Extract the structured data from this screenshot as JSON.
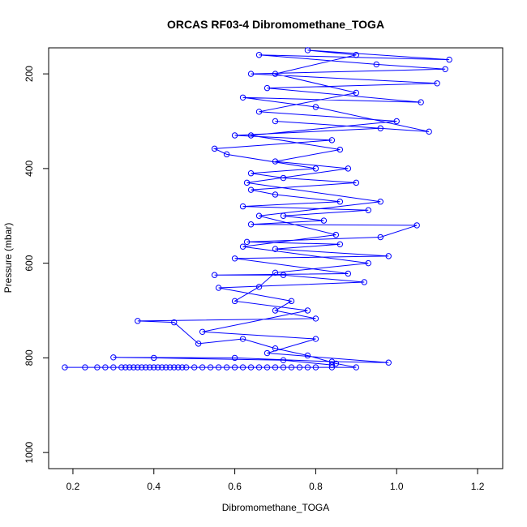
{
  "chart_data": {
    "type": "line",
    "title": "ORCAS RF03-4 Dibromomethane_TOGA",
    "x_label": "Dibromomethane_TOGA",
    "y_label": "Pressure (mbar)",
    "color": "#0000ff",
    "x": [
      0.18,
      0.23,
      0.26,
      0.28,
      0.3,
      0.32,
      0.33,
      0.34,
      0.35,
      0.36,
      0.37,
      0.38,
      0.39,
      0.4,
      0.41,
      0.42,
      0.43,
      0.44,
      0.45,
      0.46,
      0.47,
      0.48,
      0.5,
      0.52,
      0.54,
      0.56,
      0.58,
      0.6,
      0.62,
      0.64,
      0.66,
      0.68,
      0.7,
      0.72,
      0.74,
      0.76,
      0.78,
      0.8,
      0.84,
      0.9,
      0.85,
      0.78,
      0.7,
      0.62,
      0.51,
      0.45,
      0.36,
      0.8,
      0.7,
      0.74,
      0.56,
      0.92,
      0.72,
      0.55,
      0.88,
      0.6,
      0.98,
      0.7,
      0.86,
      0.63,
      0.96,
      1.05,
      0.64,
      0.82,
      0.72,
      0.93,
      0.62,
      0.86,
      0.7,
      0.64,
      0.9,
      0.72,
      0.64,
      0.8,
      0.58,
      0.55,
      0.84,
      0.6,
      0.96,
      0.7,
      1.08,
      0.8,
      0.62,
      1.06,
      0.68,
      1.1,
      0.64,
      1.12,
      0.95,
      0.66,
      1.13,
      0.78,
      0.9,
      0.7,
      0.9,
      0.66,
      1.0,
      0.64,
      0.86,
      0.7,
      0.88,
      0.63,
      0.96,
      0.66,
      0.85,
      0.62,
      0.93,
      0.7,
      0.66,
      0.6,
      0.78,
      0.52,
      0.8,
      0.68,
      0.98,
      0.84,
      0.6,
      0.3,
      0.4,
      0.72,
      0.84
    ],
    "values": [
      820,
      820,
      820,
      820,
      820,
      820,
      820,
      820,
      820,
      820,
      820,
      820,
      820,
      820,
      820,
      820,
      820,
      820,
      820,
      820,
      820,
      820,
      820,
      820,
      820,
      820,
      820,
      820,
      820,
      820,
      820,
      820,
      820,
      820,
      820,
      820,
      820,
      820,
      820,
      820,
      812,
      795,
      780,
      760,
      770,
      725,
      722,
      717,
      700,
      680,
      652,
      640,
      625,
      625,
      622,
      590,
      585,
      570,
      560,
      555,
      545,
      520,
      518,
      510,
      500,
      488,
      480,
      470,
      455,
      445,
      430,
      420,
      410,
      400,
      370,
      358,
      340,
      330,
      315,
      300,
      322,
      270,
      250,
      260,
      230,
      220,
      200,
      190,
      180,
      160,
      170,
      150,
      160,
      200,
      240,
      280,
      300,
      330,
      360,
      385,
      400,
      430,
      470,
      500,
      540,
      565,
      600,
      620,
      650,
      680,
      700,
      745,
      760,
      790,
      810,
      808,
      800,
      799,
      800,
      805,
      815
    ],
    "xlim": [
      0.14,
      1.262
    ],
    "ylim": [
      1034,
      145
    ],
    "xticks": [
      0.2,
      0.4,
      0.6,
      0.8,
      {
        "value": 1,
        "label": "1.0"
      },
      1.2
    ],
    "yticks": [
      200,
      400,
      600,
      800,
      1000
    ]
  }
}
